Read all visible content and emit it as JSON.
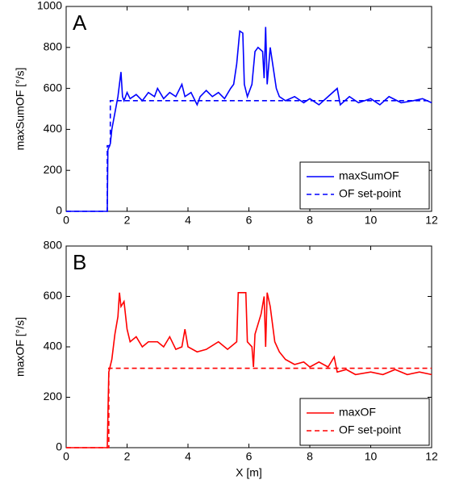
{
  "chart_data": [
    {
      "type": "line",
      "panel_label": "A",
      "ylabel": "maxSumOF [°/s]",
      "xlim": [
        0,
        12
      ],
      "xticks": [
        0,
        2,
        4,
        6,
        8,
        10,
        12
      ],
      "ylim": [
        0,
        1000
      ],
      "yticks": [
        0,
        200,
        400,
        600,
        800,
        1000
      ],
      "legend": "lower right",
      "series": [
        {
          "name": "maxSumOF",
          "color": "#0000ff",
          "dashed": false,
          "x": [
            0,
            1.35,
            1.37,
            1.45,
            1.5,
            1.6,
            1.7,
            1.75,
            1.8,
            1.85,
            1.9,
            2.0,
            2.1,
            2.3,
            2.5,
            2.7,
            2.9,
            3.0,
            3.2,
            3.4,
            3.6,
            3.8,
            3.9,
            4.1,
            4.3,
            4.4,
            4.6,
            4.8,
            5.0,
            5.2,
            5.4,
            5.5,
            5.6,
            5.7,
            5.8,
            5.85,
            5.95,
            6.1,
            6.2,
            6.3,
            6.45,
            6.5,
            6.55,
            6.6,
            6.7,
            6.8,
            6.9,
            7.0,
            7.2,
            7.5,
            7.8,
            8.0,
            8.3,
            8.6,
            8.9,
            9.0,
            9.3,
            9.6,
            10.0,
            10.3,
            10.6,
            11.0,
            11.4,
            11.7,
            12
          ],
          "values": [
            0,
            0,
            300,
            330,
            400,
            480,
            560,
            620,
            680,
            560,
            540,
            580,
            550,
            570,
            540,
            580,
            560,
            600,
            550,
            580,
            560,
            620,
            560,
            580,
            520,
            560,
            590,
            560,
            580,
            550,
            600,
            620,
            720,
            880,
            870,
            620,
            560,
            620,
            780,
            800,
            780,
            650,
            900,
            620,
            800,
            700,
            600,
            560,
            540,
            560,
            530,
            550,
            520,
            560,
            600,
            520,
            560,
            530,
            550,
            520,
            560,
            530,
            540,
            550,
            530
          ]
        },
        {
          "name": "OF set-point",
          "color": "#0000ff",
          "dashed": true,
          "x": [
            0,
            1.35,
            1.35,
            1.45,
            1.45,
            12
          ],
          "values": [
            0,
            0,
            320,
            320,
            540,
            540
          ]
        }
      ]
    },
    {
      "type": "line",
      "panel_label": "B",
      "ylabel": "maxOF [°/s]",
      "xlabel": "X [m]",
      "xlim": [
        0,
        12
      ],
      "xticks": [
        0,
        2,
        4,
        6,
        8,
        10,
        12
      ],
      "ylim": [
        0,
        800
      ],
      "yticks": [
        0,
        200,
        400,
        600,
        800
      ],
      "legend": "lower right",
      "series": [
        {
          "name": "maxOF",
          "color": "#ff0000",
          "dashed": false,
          "x": [
            0,
            1.35,
            1.4,
            1.5,
            1.6,
            1.7,
            1.75,
            1.8,
            1.9,
            2.0,
            2.1,
            2.3,
            2.5,
            2.7,
            3.0,
            3.2,
            3.4,
            3.6,
            3.8,
            3.9,
            4.0,
            4.3,
            4.6,
            5.0,
            5.3,
            5.6,
            5.65,
            5.9,
            5.95,
            6.1,
            6.15,
            6.2,
            6.4,
            6.5,
            6.55,
            6.6,
            6.7,
            6.85,
            7.0,
            7.2,
            7.5,
            7.8,
            8.0,
            8.3,
            8.6,
            8.8,
            8.9,
            9.2,
            9.5,
            10.0,
            10.4,
            10.8,
            11.2,
            11.6,
            12
          ],
          "values": [
            0,
            0,
            300,
            350,
            450,
            520,
            615,
            560,
            580,
            470,
            420,
            440,
            400,
            420,
            420,
            400,
            440,
            390,
            400,
            470,
            400,
            380,
            390,
            420,
            390,
            420,
            615,
            615,
            420,
            400,
            320,
            450,
            530,
            600,
            400,
            615,
            560,
            420,
            380,
            350,
            330,
            340,
            320,
            340,
            320,
            360,
            300,
            310,
            290,
            300,
            290,
            310,
            290,
            300,
            290
          ]
        },
        {
          "name": "OF set-point",
          "color": "#ff0000",
          "dashed": true,
          "x": [
            0,
            1.4,
            1.4,
            12
          ],
          "values": [
            0,
            0,
            315,
            315
          ]
        }
      ]
    }
  ]
}
